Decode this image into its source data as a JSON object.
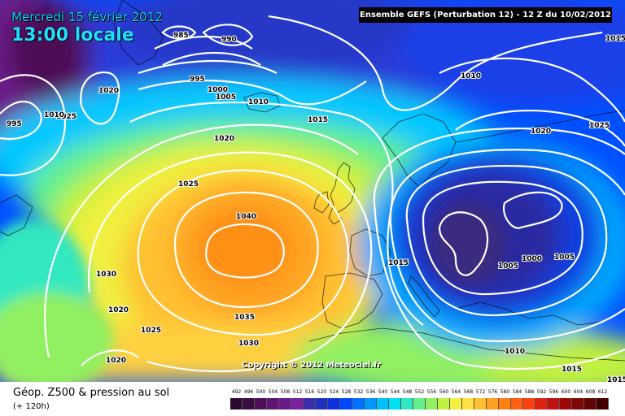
{
  "header": {
    "date": "Mercredi 15 février 2012",
    "time": "13:00 locale",
    "run_info": "Ensemble GEFS (Perturbation 12)  -  12 Z du 10/02/2012"
  },
  "copyright": "Copyright © 2012 Meteociel.fr",
  "footer": {
    "parameter": "Géop. Z500 & pression au sol",
    "lead_time": "(+ 120h)"
  },
  "isobar_labels": [
    "985",
    "990",
    "995",
    "1000",
    "1005",
    "1010",
    "1015",
    "1020",
    "1025",
    "1030",
    "1035",
    "1040",
    "1015",
    "1010",
    "1010",
    "1015",
    "1020",
    "1025",
    "1020",
    "1025",
    "1030",
    "1020",
    "1025",
    "1020",
    "995",
    "1000",
    "1005",
    "1010",
    "1005",
    "1015",
    "1015"
  ],
  "color_scale": {
    "labels": [
      "492",
      "496",
      "500",
      "504",
      "508",
      "512",
      "516",
      "520",
      "524",
      "528",
      "532",
      "536",
      "540",
      "544",
      "548",
      "552",
      "556",
      "560",
      "564",
      "568",
      "572",
      "576",
      "580",
      "584",
      "588",
      "592",
      "596",
      "600",
      "604",
      "608",
      "612"
    ],
    "colors": [
      "#2a0a2e",
      "#3a0d40",
      "#4d1055",
      "#5e1470",
      "#6a1a88",
      "#7a1fa0",
      "#3a2fa8",
      "#2030c0",
      "#1030e0",
      "#0048ff",
      "#0070ff",
      "#0098ff",
      "#00c0ff",
      "#00e0f0",
      "#30e8c0",
      "#60f090",
      "#90f060",
      "#c0f040",
      "#f0f040",
      "#ffe040",
      "#ffc030",
      "#ffa020",
      "#ff8010",
      "#ff6010",
      "#ff4010",
      "#e02010",
      "#c01010",
      "#a00808",
      "#800808",
      "#600404",
      "#400000"
    ]
  },
  "icons": [
    "map-canvas"
  ]
}
